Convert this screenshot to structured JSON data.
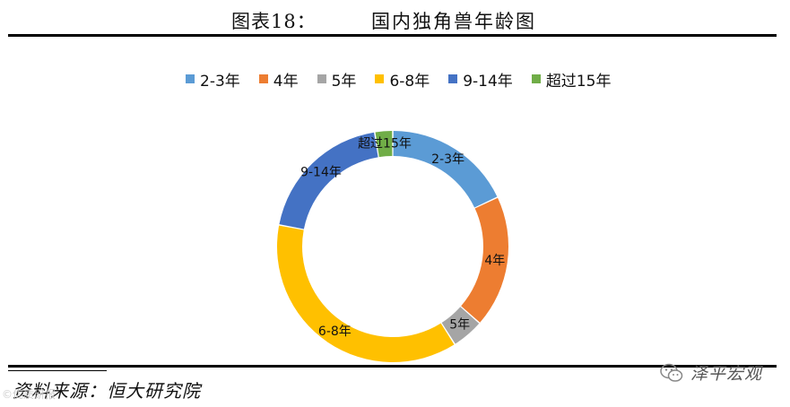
{
  "figure": {
    "label": "图表18：",
    "title": "国内独角兽年龄图"
  },
  "source": "资料来源：恒大研究院",
  "watermark": {
    "left_text": "©优质研报",
    "wechat_text": "泽平宏观"
  },
  "chart_data": {
    "type": "pie",
    "style": "donut",
    "legend_position": "top",
    "categories": [
      "2-3年",
      "4年",
      "5年",
      "6-8年",
      "9-14年",
      "超过15年"
    ],
    "values": [
      18,
      18.5,
      4.5,
      37,
      19.5,
      2.5
    ],
    "colors": [
      "#5B9BD5",
      "#ED7D31",
      "#A5A5A5",
      "#FFC000",
      "#4472C4",
      "#70AD47"
    ]
  }
}
